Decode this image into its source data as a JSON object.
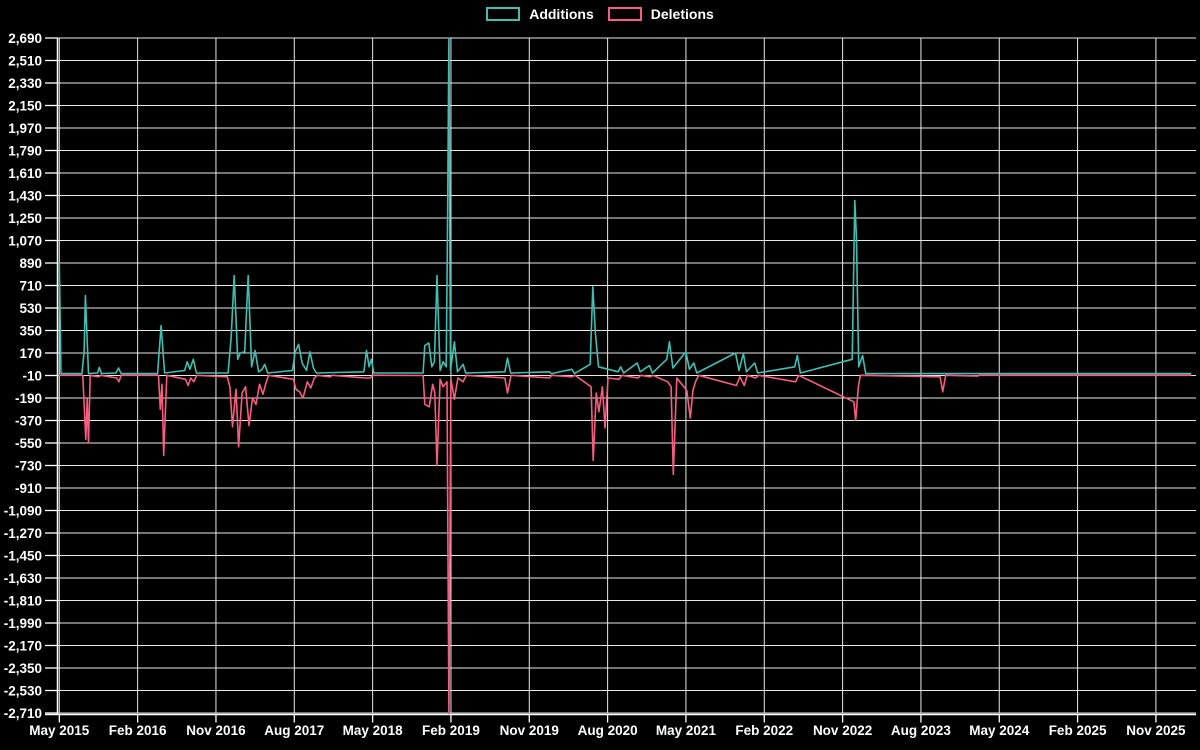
{
  "legend": {
    "additions_label": "Additions",
    "deletions_label": "Deletions"
  },
  "colors": {
    "background": "#000000",
    "grid": "#e8e8e8",
    "axis": "#ffffff",
    "text": "#ffffff",
    "additions": "#3fbfb2",
    "deletions": "#f85c80"
  },
  "chart_data": {
    "type": "line",
    "title": "",
    "xlabel": "",
    "ylabel": "",
    "grid": true,
    "legend_position": "top-center",
    "ylim": [
      -2710,
      2690
    ],
    "ytick_step": 180,
    "yticks": [
      2690,
      2510,
      2330,
      2150,
      1970,
      1790,
      1610,
      1430,
      1250,
      1070,
      890,
      710,
      530,
      350,
      170,
      -10,
      -190,
      -370,
      -550,
      -730,
      -910,
      -1090,
      -1270,
      -1450,
      -1630,
      -1810,
      -1990,
      -2170,
      -2350,
      -2530,
      -2710
    ],
    "xtick_labels": [
      "May 2015",
      "Feb 2016",
      "Nov 2016",
      "Aug 2017",
      "May 2018",
      "Feb 2019",
      "Nov 2019",
      "Aug 2020",
      "May 2021",
      "Feb 2022",
      "Nov 2022",
      "Aug 2023",
      "May 2024",
      "Feb 2025",
      "Nov 2025"
    ],
    "x_unit": "months_since_2015_05",
    "x_months_per_tick": 9,
    "x_range_months": [
      0,
      130
    ],
    "series": [
      {
        "name": "Additions",
        "color": "#3fbfb2",
        "points": [
          [
            0,
            890
          ],
          [
            0.2,
            5
          ],
          [
            2.6,
            5
          ],
          [
            2.85,
            180
          ],
          [
            3,
            630
          ],
          [
            3.35,
            5
          ],
          [
            4.4,
            10
          ],
          [
            4.6,
            55
          ],
          [
            4.85,
            5
          ],
          [
            6.5,
            10
          ],
          [
            6.8,
            50
          ],
          [
            7.1,
            5
          ],
          [
            11.3,
            5
          ],
          [
            11.7,
            390
          ],
          [
            12.1,
            10
          ],
          [
            14.4,
            30
          ],
          [
            14.7,
            100
          ],
          [
            15,
            40
          ],
          [
            15.4,
            120
          ],
          [
            15.75,
            10
          ],
          [
            19.4,
            10
          ],
          [
            19.75,
            300
          ],
          [
            20.1,
            790
          ],
          [
            20.5,
            120
          ],
          [
            20.8,
            170
          ],
          [
            21.3,
            180
          ],
          [
            21.7,
            790
          ],
          [
            22.1,
            60
          ],
          [
            22.5,
            190
          ],
          [
            22.9,
            20
          ],
          [
            23.3,
            40
          ],
          [
            23.6,
            80
          ],
          [
            23.95,
            10
          ],
          [
            26.8,
            30
          ],
          [
            27.1,
            180
          ],
          [
            27.5,
            240
          ],
          [
            27.9,
            90
          ],
          [
            28.4,
            30
          ],
          [
            28.8,
            180
          ],
          [
            29.2,
            50
          ],
          [
            29.55,
            10
          ],
          [
            35,
            20
          ],
          [
            35.3,
            190
          ],
          [
            35.6,
            60
          ],
          [
            35.85,
            120
          ],
          [
            36.15,
            10
          ],
          [
            41.8,
            10
          ],
          [
            42,
            230
          ],
          [
            42.45,
            250
          ],
          [
            42.8,
            60
          ],
          [
            43.1,
            100
          ],
          [
            43.4,
            790
          ],
          [
            43.75,
            30
          ],
          [
            44.1,
            100
          ],
          [
            44.45,
            60
          ],
          [
            44.62,
            1250
          ],
          [
            44.77,
            2690
          ],
          [
            44.95,
            30
          ],
          [
            45.4,
            260
          ],
          [
            45.75,
            20
          ],
          [
            46.4,
            80
          ],
          [
            46.7,
            10
          ],
          [
            51.2,
            20
          ],
          [
            51.5,
            130
          ],
          [
            51.85,
            10
          ],
          [
            56.3,
            20
          ],
          [
            56.55,
            5
          ],
          [
            58.9,
            40
          ],
          [
            59.2,
            5
          ],
          [
            61,
            80
          ],
          [
            61.3,
            700
          ],
          [
            61.6,
            330
          ],
          [
            61.95,
            60
          ],
          [
            64.2,
            20
          ],
          [
            64.5,
            60
          ],
          [
            64.85,
            10
          ],
          [
            66.4,
            90
          ],
          [
            66.75,
            20
          ],
          [
            67.8,
            70
          ],
          [
            68.15,
            10
          ],
          [
            69.8,
            120
          ],
          [
            70.1,
            260
          ],
          [
            70.5,
            50
          ],
          [
            72,
            180
          ],
          [
            72.4,
            40
          ],
          [
            72.9,
            90
          ],
          [
            73.25,
            10
          ],
          [
            77.7,
            170
          ],
          [
            78.1,
            30
          ],
          [
            78.6,
            165
          ],
          [
            78.95,
            20
          ],
          [
            79.9,
            90
          ],
          [
            80.25,
            10
          ],
          [
            84.5,
            60
          ],
          [
            84.8,
            150
          ],
          [
            85.15,
            10
          ],
          [
            91.1,
            120
          ],
          [
            91.4,
            1390
          ],
          [
            91.6,
            1080
          ],
          [
            91.85,
            60
          ],
          [
            92.3,
            150
          ],
          [
            92.65,
            5
          ],
          [
            130,
            5
          ]
        ]
      },
      {
        "name": "Deletions",
        "color": "#f85c80",
        "points": [
          [
            0,
            -8
          ],
          [
            2.7,
            -8
          ],
          [
            2.9,
            -300
          ],
          [
            3.05,
            -520
          ],
          [
            3.2,
            -200
          ],
          [
            3.35,
            -550
          ],
          [
            3.55,
            -8
          ],
          [
            4.5,
            -20
          ],
          [
            4.75,
            -8
          ],
          [
            6.6,
            -30
          ],
          [
            6.85,
            -60
          ],
          [
            7.1,
            -8
          ],
          [
            11.4,
            -8
          ],
          [
            11.6,
            -280
          ],
          [
            11.8,
            -80
          ],
          [
            12,
            -650
          ],
          [
            12.35,
            -8
          ],
          [
            14.5,
            -40
          ],
          [
            14.8,
            -90
          ],
          [
            15.1,
            -30
          ],
          [
            15.45,
            -60
          ],
          [
            15.8,
            -8
          ],
          [
            19.3,
            -20
          ],
          [
            19.6,
            -100
          ],
          [
            19.9,
            -420
          ],
          [
            20.3,
            -120
          ],
          [
            20.6,
            -580
          ],
          [
            21,
            -150
          ],
          [
            21.4,
            -100
          ],
          [
            21.8,
            -410
          ],
          [
            22.2,
            -190
          ],
          [
            22.6,
            -240
          ],
          [
            23,
            -80
          ],
          [
            23.4,
            -160
          ],
          [
            23.7,
            -80
          ],
          [
            24.05,
            -8
          ],
          [
            26.9,
            -40
          ],
          [
            27.2,
            -120
          ],
          [
            27.6,
            -140
          ],
          [
            28,
            -190
          ],
          [
            28.5,
            -60
          ],
          [
            28.9,
            -110
          ],
          [
            29.3,
            -30
          ],
          [
            29.65,
            -8
          ],
          [
            31.1,
            -20
          ],
          [
            31.35,
            -8
          ],
          [
            35.2,
            -30
          ],
          [
            35.7,
            -30
          ],
          [
            36.05,
            -8
          ],
          [
            41.8,
            -10
          ],
          [
            42,
            -240
          ],
          [
            42.5,
            -260
          ],
          [
            42.9,
            -80
          ],
          [
            43.15,
            -150
          ],
          [
            43.4,
            -730
          ],
          [
            43.75,
            -40
          ],
          [
            44.1,
            -100
          ],
          [
            44.55,
            -60
          ],
          [
            44.77,
            -2710
          ],
          [
            45,
            -40
          ],
          [
            45.4,
            -200
          ],
          [
            45.8,
            -30
          ],
          [
            46.4,
            -60
          ],
          [
            46.75,
            -8
          ],
          [
            51.2,
            -30
          ],
          [
            51.5,
            -150
          ],
          [
            51.9,
            -8
          ],
          [
            56.3,
            -30
          ],
          [
            56.6,
            -8
          ],
          [
            58.9,
            -20
          ],
          [
            59.25,
            -8
          ],
          [
            61.1,
            -100
          ],
          [
            61.35,
            -690
          ],
          [
            61.7,
            -150
          ],
          [
            62,
            -300
          ],
          [
            62.4,
            -100
          ],
          [
            62.7,
            -430
          ],
          [
            63.05,
            -30
          ],
          [
            64.3,
            -40
          ],
          [
            64.65,
            -8
          ],
          [
            66.5,
            -30
          ],
          [
            66.8,
            -8
          ],
          [
            67.9,
            -20
          ],
          [
            68.2,
            -8
          ],
          [
            69.9,
            -60
          ],
          [
            70.3,
            -100
          ],
          [
            70.55,
            -800
          ],
          [
            70.95,
            -30
          ],
          [
            72.1,
            -130
          ],
          [
            72.5,
            -350
          ],
          [
            72.8,
            -130
          ],
          [
            73.1,
            -60
          ],
          [
            73.45,
            -8
          ],
          [
            77.8,
            -90
          ],
          [
            78.2,
            -20
          ],
          [
            78.7,
            -90
          ],
          [
            79.05,
            -8
          ],
          [
            80,
            -30
          ],
          [
            80.35,
            -8
          ],
          [
            84.6,
            -60
          ],
          [
            84.95,
            -8
          ],
          [
            91.3,
            -220
          ],
          [
            91.5,
            -370
          ],
          [
            91.8,
            -100
          ],
          [
            92.05,
            -8
          ],
          [
            101.2,
            -20
          ],
          [
            101.5,
            -140
          ],
          [
            101.85,
            -8
          ],
          [
            105.5,
            -15
          ],
          [
            105.7,
            -8
          ],
          [
            130,
            -8
          ]
        ]
      }
    ]
  }
}
